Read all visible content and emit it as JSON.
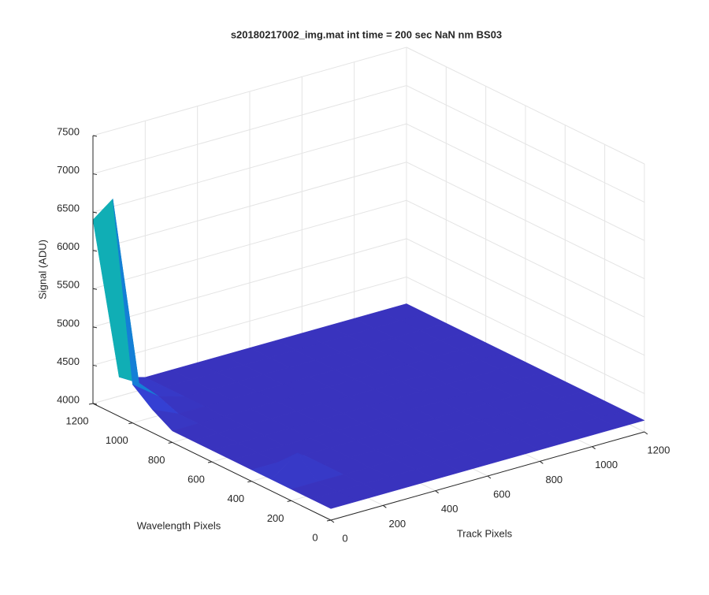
{
  "chart_data": {
    "type": "surface",
    "title": "s20180217002_img.mat int time = 200 sec  NaN nm BS03",
    "xlabel": "Track Pixels",
    "ylabel": "Wavelength Pixels",
    "zlabel": "Signal (ADU)",
    "x": [
      0,
      100,
      200,
      300,
      400,
      500,
      600,
      700,
      800,
      900,
      1000,
      1100,
      1200
    ],
    "y": [
      0,
      100,
      200,
      300,
      400,
      500,
      600,
      700,
      800,
      900,
      1000,
      1100,
      1200
    ],
    "z": [
      [
        4150,
        4150,
        4150,
        4150,
        4150,
        4150,
        4150,
        4150,
        4150,
        4150,
        4150,
        4150,
        4150
      ],
      [
        4150,
        4150,
        4150,
        4150,
        4150,
        4150,
        4150,
        4150,
        4150,
        4150,
        4150,
        4150,
        4150
      ],
      [
        4150,
        4150,
        4150,
        4150,
        4150,
        4150,
        4150,
        4150,
        4150,
        4150,
        4150,
        4150,
        4150
      ],
      [
        4150,
        4400,
        4150,
        4150,
        4150,
        4150,
        4150,
        4150,
        4150,
        4150,
        4150,
        4150,
        4150
      ],
      [
        4150,
        4150,
        4150,
        4150,
        4150,
        4150,
        4150,
        4150,
        4150,
        4150,
        4150,
        4150,
        4150
      ],
      [
        4150,
        4150,
        4150,
        4150,
        4150,
        4150,
        4150,
        4150,
        4150,
        4150,
        4150,
        4150,
        4150
      ],
      [
        4150,
        4150,
        4150,
        4150,
        4150,
        4150,
        4150,
        4150,
        4150,
        4150,
        4150,
        4150,
        4150
      ],
      [
        4150,
        4150,
        4150,
        4150,
        4150,
        4150,
        4150,
        4150,
        4150,
        4150,
        4150,
        4150,
        4150
      ],
      [
        4150,
        4150,
        4150,
        4150,
        4150,
        4150,
        4150,
        4150,
        4150,
        4150,
        4150,
        4150,
        4150
      ],
      [
        4300,
        4150,
        4150,
        4150,
        4150,
        4150,
        4150,
        4150,
        4150,
        4150,
        4150,
        4150,
        4150
      ],
      [
        4500,
        4250,
        4150,
        4150,
        4150,
        4150,
        4150,
        4150,
        4150,
        4150,
        4150,
        4150,
        4150
      ],
      [
        6800,
        4300,
        4150,
        4150,
        4150,
        4150,
        4150,
        4150,
        4150,
        4150,
        4150,
        4150,
        4150
      ],
      [
        6400,
        4250,
        4150,
        4150,
        4150,
        4150,
        4150,
        4150,
        4150,
        4150,
        4150,
        4150,
        4150
      ]
    ],
    "xlim": [
      0,
      1200
    ],
    "ylim": [
      0,
      1200
    ],
    "zlim": [
      4000,
      7500
    ],
    "xticks": [
      0,
      200,
      400,
      600,
      800,
      1000,
      1200
    ],
    "yticks": [
      0,
      200,
      400,
      600,
      800,
      1000,
      1200
    ],
    "zticks": [
      4000,
      4500,
      5000,
      5500,
      6000,
      6500,
      7000,
      7500
    ],
    "grid": true,
    "colormap": [
      "#3e26a8",
      "#2e52f0",
      "#1283d4",
      "#10b4b0",
      "#48cb86",
      "#bdbf3b",
      "#fbb832",
      "#f9fb15"
    ]
  }
}
